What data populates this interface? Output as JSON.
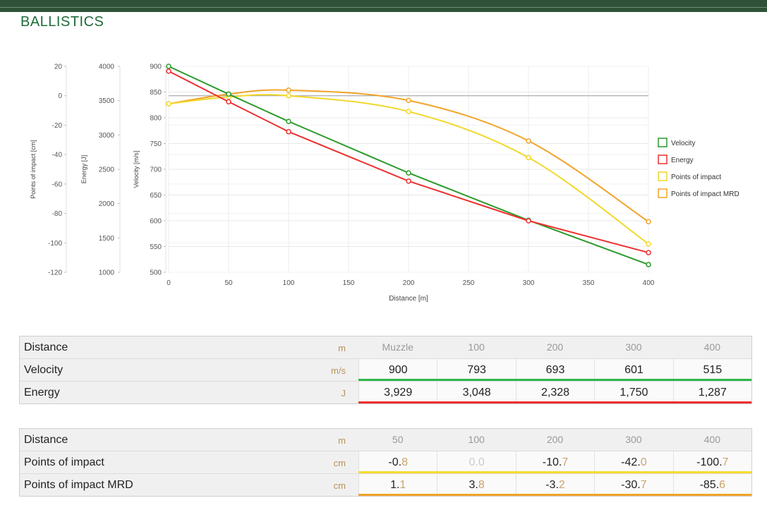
{
  "page_title": "BALLISTICS",
  "chart_data": {
    "type": "line",
    "xlabel": "Distance [m]",
    "xlim": [
      0,
      400
    ],
    "x_ticks": [
      0,
      50,
      100,
      150,
      200,
      250,
      300,
      350,
      400
    ],
    "axes": {
      "poi": {
        "label": "Points of impact [cm]",
        "range": [
          -120,
          20
        ],
        "ticks": [
          20,
          0,
          -20,
          -40,
          -60,
          -80,
          -100,
          -120
        ]
      },
      "energy": {
        "label": "Energy [J]",
        "range": [
          1000,
          4000
        ],
        "ticks": [
          4000,
          3500,
          3000,
          2500,
          2000,
          1500,
          1000
        ]
      },
      "velocity": {
        "label": "Velocity [m/s]",
        "range": [
          500,
          900
        ],
        "ticks": [
          900,
          850,
          800,
          750,
          700,
          650,
          600,
          550,
          500
        ]
      }
    },
    "series": [
      {
        "name": "Velocity",
        "axis": "velocity",
        "color": "#2a9a2a",
        "curve": "linear",
        "x": [
          0,
          50,
          100,
          200,
          300,
          400
        ],
        "values": [
          900,
          846,
          793,
          693,
          601,
          515
        ]
      },
      {
        "name": "Energy",
        "axis": "energy",
        "color": "#ee3030",
        "curve": "linear",
        "x": [
          0,
          50,
          100,
          200,
          300,
          400
        ],
        "values": [
          3929,
          3484,
          3048,
          2328,
          1750,
          1287
        ]
      },
      {
        "name": "Points of impact",
        "axis": "poi",
        "color": "#f2d82a",
        "curve": "smooth",
        "x": [
          0,
          50,
          100,
          200,
          300,
          400
        ],
        "values": [
          -5.5,
          -0.8,
          0.0,
          -10.7,
          -42.0,
          -100.7
        ]
      },
      {
        "name": "Points of impact MRD",
        "axis": "poi",
        "color": "#f2a42a",
        "curve": "smooth",
        "x": [
          0,
          50,
          100,
          200,
          300,
          400
        ],
        "values": [
          -5.5,
          1.1,
          3.8,
          -3.2,
          -30.7,
          -85.6
        ]
      }
    ],
    "zero_line": {
      "axis": "poi",
      "value": 0
    },
    "grid": true,
    "legend_position": "right"
  },
  "table1": {
    "head": {
      "label": "Distance",
      "unit": "m",
      "cells": [
        "Muzzle",
        "100",
        "200",
        "300",
        "400"
      ]
    },
    "rows": [
      {
        "label": "Velocity",
        "unit": "m/s",
        "bar_color": "#2db84a",
        "cells": [
          {
            "main": "900"
          },
          {
            "main": "793"
          },
          {
            "main": "693"
          },
          {
            "main": "601"
          },
          {
            "main": "515"
          }
        ]
      },
      {
        "label": "Energy",
        "unit": "J",
        "bar_color": "#ee3030",
        "cells": [
          {
            "main": "3,929"
          },
          {
            "main": "3,048"
          },
          {
            "main": "2,328"
          },
          {
            "main": "1,750"
          },
          {
            "main": "1,287"
          }
        ]
      }
    ]
  },
  "table2": {
    "head": {
      "label": "Distance",
      "unit": "m",
      "cells": [
        "50",
        "100",
        "200",
        "300",
        "400"
      ]
    },
    "rows": [
      {
        "label": "Points of impact",
        "unit": "cm",
        "bar_color": "#f5dc30",
        "cells": [
          {
            "main": "-0.",
            "frac": "8"
          },
          {
            "main": "0.",
            "frac": "0",
            "dim": true
          },
          {
            "main": "-10.",
            "frac": "7"
          },
          {
            "main": "-42.",
            "frac": "0"
          },
          {
            "main": "-100.",
            "frac": "7"
          }
        ]
      },
      {
        "label": "Points of impact MRD",
        "unit": "cm",
        "bar_color": "#f2a42a",
        "cells": [
          {
            "main": "1.",
            "frac": "1"
          },
          {
            "main": "3.",
            "frac": "8"
          },
          {
            "main": "-3.",
            "frac": "2"
          },
          {
            "main": "-30.",
            "frac": "7"
          },
          {
            "main": "-85.",
            "frac": "6"
          }
        ]
      }
    ]
  }
}
